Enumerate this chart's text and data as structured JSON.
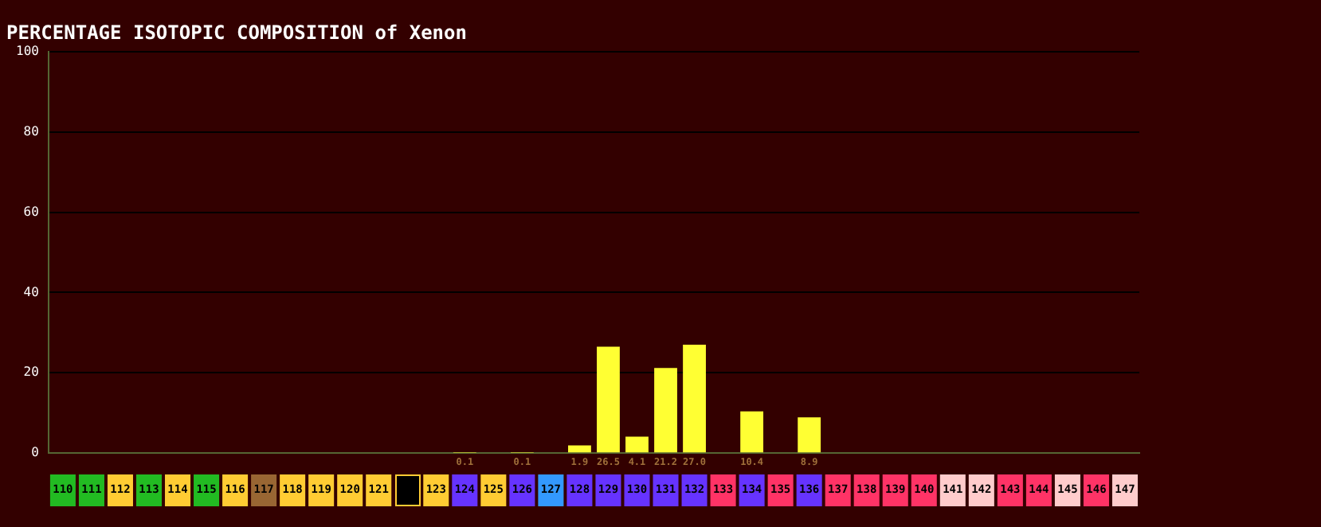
{
  "chart_data": {
    "type": "bar",
    "title": "PERCENTAGE ISOTOPIC COMPOSITION of Xenon",
    "categories": [
      "110",
      "111",
      "112",
      "113",
      "114",
      "115",
      "116",
      "117",
      "118",
      "119",
      "120",
      "121",
      null,
      "123",
      "124",
      "125",
      "126",
      "127",
      "128",
      "129",
      "130",
      "131",
      "132",
      "133",
      "134",
      "135",
      "136",
      "137",
      "138",
      "139",
      "140",
      "141",
      "142",
      "143",
      "144",
      "145",
      "146",
      "147"
    ],
    "values": [
      null,
      null,
      null,
      null,
      null,
      null,
      null,
      null,
      null,
      null,
      null,
      null,
      null,
      null,
      0.1,
      null,
      0.1,
      null,
      1.9,
      26.5,
      4.1,
      21.2,
      27.0,
      null,
      10.4,
      null,
      8.9,
      null,
      null,
      null,
      null,
      null,
      null,
      null,
      null,
      null,
      null,
      null
    ],
    "value_labels": [
      null,
      null,
      null,
      null,
      null,
      null,
      null,
      null,
      null,
      null,
      null,
      null,
      null,
      null,
      "0.1",
      null,
      "0.1",
      null,
      "1.9",
      "26.5",
      "4.1",
      "21.2",
      "27.0",
      null,
      "10.4",
      null,
      "8.9",
      null,
      null,
      null,
      null,
      null,
      null,
      null,
      null,
      null,
      null,
      null
    ],
    "color": "#ffff33",
    "ylim": [
      0,
      100
    ],
    "yticks": [
      0,
      20,
      40,
      60,
      80,
      100
    ],
    "grid": "y",
    "legend": false
  }
}
